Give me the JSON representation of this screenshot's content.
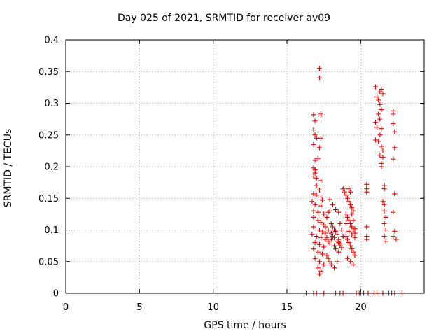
{
  "chart_data": {
    "type": "scatter",
    "title": "Day 025 of 2021, SRMTID for receiver av09",
    "xlabel": "GPS time / hours",
    "ylabel": "SRMTID / TECUs",
    "xlim": [
      0,
      24.3
    ],
    "ylim": [
      0,
      0.4
    ],
    "xticks": [
      0,
      5,
      10,
      15,
      20
    ],
    "xtick_labels": [
      "0",
      "5",
      "10",
      "15",
      "20"
    ],
    "yticks": [
      0,
      0.05,
      0.1,
      0.15,
      0.2,
      0.25,
      0.3,
      0.35,
      0.4
    ],
    "ytick_labels": [
      "0",
      "0.05",
      "0.1",
      "0.15",
      "0.2",
      "0.25",
      "0.3",
      "0.35",
      "0.4"
    ],
    "grid": true,
    "marker": "+",
    "color": "#dd0000",
    "series": [
      {
        "name": "SRMTID",
        "points": [
          [
            16.3,
            0
          ],
          [
            16.8,
            0
          ],
          [
            17.0,
            0
          ],
          [
            17.5,
            0
          ],
          [
            18.3,
            0
          ],
          [
            18.6,
            0
          ],
          [
            18.8,
            0
          ],
          [
            19.7,
            0
          ],
          [
            19.9,
            0
          ],
          [
            20.0,
            0
          ],
          [
            20.2,
            0
          ],
          [
            20.5,
            0
          ],
          [
            20.9,
            0
          ],
          [
            21.1,
            0
          ],
          [
            21.5,
            0
          ],
          [
            21.9,
            0
          ],
          [
            22.1,
            0
          ],
          [
            22.3,
            0
          ],
          [
            22.8,
            0
          ],
          [
            17.2,
            0.355
          ],
          [
            17.2,
            0.34
          ],
          [
            17.3,
            0.283
          ],
          [
            17.3,
            0.28
          ],
          [
            16.8,
            0.282
          ],
          [
            16.9,
            0.272
          ],
          [
            16.8,
            0.258
          ],
          [
            16.9,
            0.25
          ],
          [
            17.0,
            0.245
          ],
          [
            17.3,
            0.245
          ],
          [
            16.8,
            0.235
          ],
          [
            17.2,
            0.23
          ],
          [
            16.9,
            0.21
          ],
          [
            17.1,
            0.213
          ],
          [
            16.8,
            0.198
          ],
          [
            16.9,
            0.195
          ],
          [
            16.9,
            0.19
          ],
          [
            16.8,
            0.185
          ],
          [
            17.0,
            0.182
          ],
          [
            17.3,
            0.178
          ],
          [
            17.0,
            0.17
          ],
          [
            17.2,
            0.163
          ],
          [
            16.8,
            0.157
          ],
          [
            17.0,
            0.155
          ],
          [
            17.3,
            0.152
          ],
          [
            17.4,
            0.147
          ],
          [
            16.7,
            0.145
          ],
          [
            16.9,
            0.14
          ],
          [
            17.3,
            0.138
          ],
          [
            16.8,
            0.13
          ],
          [
            17.1,
            0.128
          ],
          [
            17.5,
            0.125
          ],
          [
            16.8,
            0.12
          ],
          [
            17.1,
            0.115
          ],
          [
            17.3,
            0.112
          ],
          [
            17.5,
            0.108
          ],
          [
            16.8,
            0.105
          ],
          [
            17.2,
            0.1
          ],
          [
            17.4,
            0.097
          ],
          [
            16.7,
            0.093
          ],
          [
            17.0,
            0.09
          ],
          [
            17.3,
            0.088
          ],
          [
            17.6,
            0.085
          ],
          [
            16.9,
            0.08
          ],
          [
            17.2,
            0.077
          ],
          [
            17.5,
            0.073
          ],
          [
            16.8,
            0.07
          ],
          [
            17.1,
            0.065
          ],
          [
            17.4,
            0.062
          ],
          [
            16.9,
            0.055
          ],
          [
            17.2,
            0.05
          ],
          [
            17.5,
            0.045
          ],
          [
            17.1,
            0.04
          ],
          [
            17.3,
            0.035
          ],
          [
            17.2,
            0.03
          ],
          [
            17.6,
            0.095
          ],
          [
            17.7,
            0.088
          ],
          [
            17.8,
            0.082
          ],
          [
            17.9,
            0.078
          ],
          [
            18.0,
            0.085
          ],
          [
            18.1,
            0.09
          ],
          [
            18.2,
            0.075
          ],
          [
            18.3,
            0.07
          ],
          [
            17.7,
            0.12
          ],
          [
            17.8,
            0.128
          ],
          [
            17.9,
            0.13
          ],
          [
            18.0,
            0.11
          ],
          [
            18.1,
            0.105
          ],
          [
            18.2,
            0.1
          ],
          [
            18.3,
            0.098
          ],
          [
            18.4,
            0.093
          ],
          [
            18.5,
            0.085
          ],
          [
            18.5,
            0.08
          ],
          [
            18.6,
            0.075
          ],
          [
            17.7,
            0.06
          ],
          [
            17.8,
            0.055
          ],
          [
            17.9,
            0.05
          ],
          [
            18.0,
            0.045
          ],
          [
            18.2,
            0.04
          ],
          [
            18.4,
            0.05
          ],
          [
            18.5,
            0.065
          ],
          [
            17.9,
            0.148
          ],
          [
            18.1,
            0.14
          ],
          [
            18.3,
            0.132
          ],
          [
            18.5,
            0.128
          ],
          [
            18.6,
            0.11
          ],
          [
            18.7,
            0.1
          ],
          [
            18.8,
            0.09
          ],
          [
            17.6,
            0.105
          ],
          [
            17.8,
            0.1
          ],
          [
            18.0,
            0.095
          ],
          [
            18.2,
            0.088
          ],
          [
            18.4,
            0.082
          ],
          [
            18.6,
            0.078
          ],
          [
            18.7,
            0.072
          ],
          [
            18.8,
            0.165
          ],
          [
            18.9,
            0.16
          ],
          [
            19.0,
            0.155
          ],
          [
            19.1,
            0.15
          ],
          [
            19.2,
            0.145
          ],
          [
            19.3,
            0.14
          ],
          [
            19.4,
            0.135
          ],
          [
            19.5,
            0.13
          ],
          [
            19.0,
            0.125
          ],
          [
            19.1,
            0.12
          ],
          [
            19.2,
            0.115
          ],
          [
            19.3,
            0.11
          ],
          [
            19.4,
            0.105
          ],
          [
            19.5,
            0.1
          ],
          [
            19.6,
            0.095
          ],
          [
            19.0,
            0.09
          ],
          [
            19.1,
            0.085
          ],
          [
            19.2,
            0.08
          ],
          [
            19.3,
            0.075
          ],
          [
            19.4,
            0.07
          ],
          [
            19.5,
            0.065
          ],
          [
            19.6,
            0.06
          ],
          [
            19.1,
            0.055
          ],
          [
            19.3,
            0.05
          ],
          [
            19.5,
            0.045
          ],
          [
            19.0,
            0.11
          ],
          [
            19.2,
            0.098
          ],
          [
            19.4,
            0.092
          ],
          [
            19.6,
            0.088
          ],
          [
            19.6,
            0.102
          ],
          [
            19.5,
            0.115
          ],
          [
            19.4,
            0.125
          ],
          [
            19.3,
            0.16
          ],
          [
            19.2,
            0.165
          ],
          [
            20.4,
            0.172
          ],
          [
            20.4,
            0.165
          ],
          [
            20.4,
            0.16
          ],
          [
            20.4,
            0.105
          ],
          [
            20.4,
            0.09
          ],
          [
            20.4,
            0.085
          ],
          [
            21.0,
            0.326
          ],
          [
            21.1,
            0.31
          ],
          [
            21.3,
            0.318
          ],
          [
            21.4,
            0.322
          ],
          [
            21.5,
            0.315
          ],
          [
            21.2,
            0.305
          ],
          [
            21.3,
            0.298
          ],
          [
            21.4,
            0.29
          ],
          [
            21.2,
            0.283
          ],
          [
            21.3,
            0.275
          ],
          [
            21.0,
            0.27
          ],
          [
            21.1,
            0.262
          ],
          [
            21.4,
            0.26
          ],
          [
            21.3,
            0.25
          ],
          [
            21.0,
            0.242
          ],
          [
            21.2,
            0.24
          ],
          [
            21.4,
            0.232
          ],
          [
            21.5,
            0.225
          ],
          [
            21.3,
            0.218
          ],
          [
            21.5,
            0.215
          ],
          [
            21.4,
            0.205
          ],
          [
            21.4,
            0.2
          ],
          [
            21.6,
            0.17
          ],
          [
            21.6,
            0.165
          ],
          [
            21.5,
            0.145
          ],
          [
            21.6,
            0.14
          ],
          [
            21.6,
            0.13
          ],
          [
            21.7,
            0.12
          ],
          [
            21.6,
            0.11
          ],
          [
            21.7,
            0.1
          ],
          [
            21.6,
            0.09
          ],
          [
            21.7,
            0.082
          ],
          [
            22.2,
            0.288
          ],
          [
            22.2,
            0.283
          ],
          [
            22.2,
            0.268
          ],
          [
            22.3,
            0.255
          ],
          [
            22.3,
            0.23
          ],
          [
            22.2,
            0.212
          ],
          [
            22.3,
            0.157
          ],
          [
            22.2,
            0.128
          ],
          [
            22.3,
            0.098
          ],
          [
            22.2,
            0.09
          ],
          [
            22.4,
            0.085
          ]
        ]
      }
    ]
  }
}
